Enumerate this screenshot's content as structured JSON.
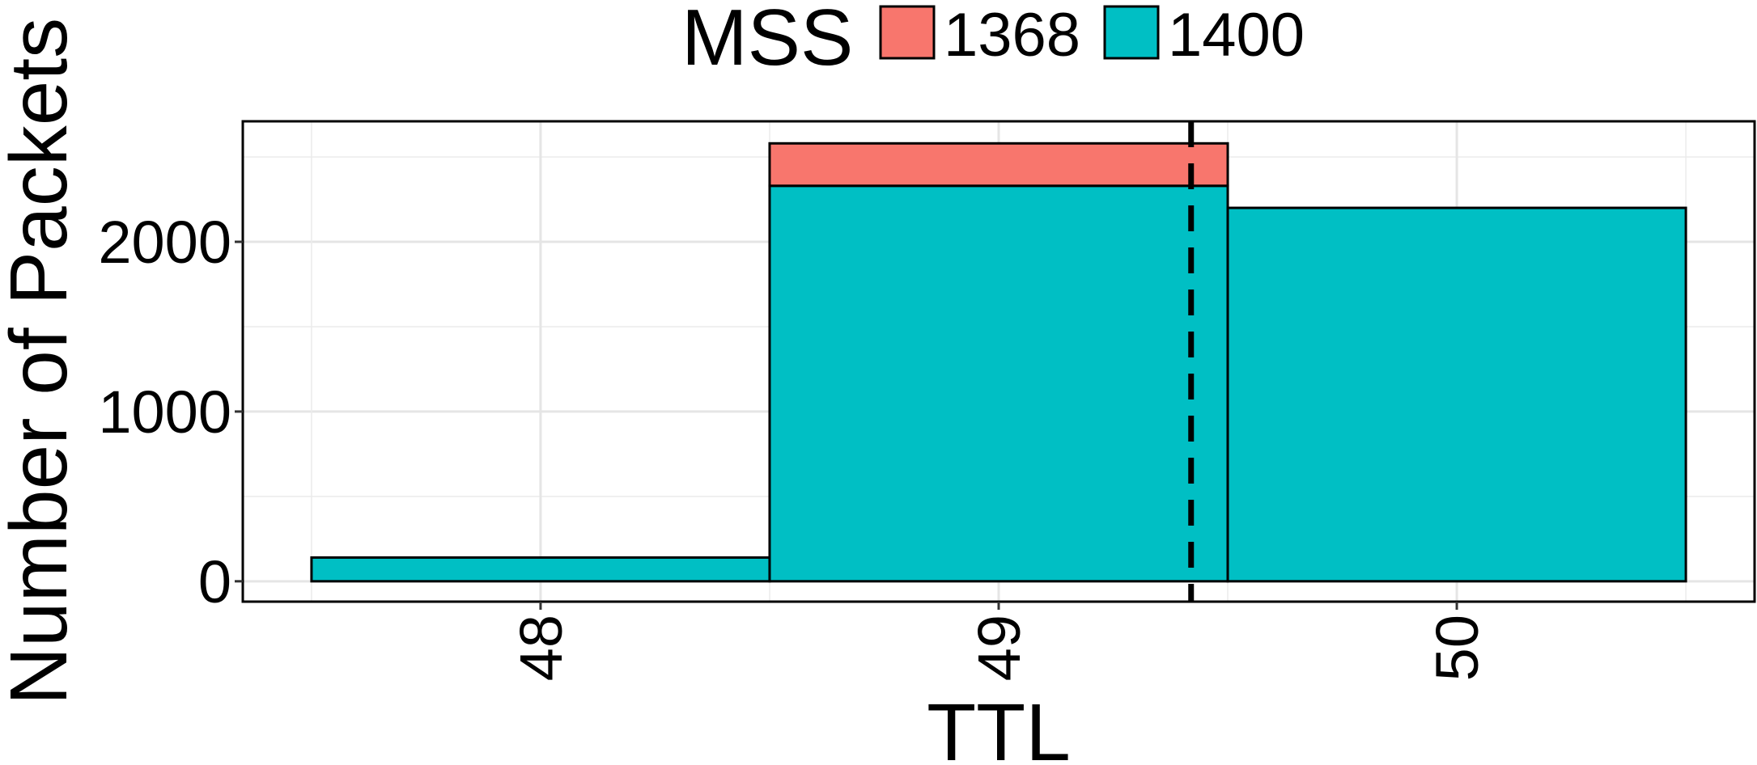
{
  "chart_data": {
    "type": "bar",
    "stacked": true,
    "xlabel": "TTL",
    "ylabel": "Number of Packets",
    "categories": [
      "48",
      "49",
      "50"
    ],
    "series": [
      {
        "name": "1400",
        "color": "#00BFC4",
        "values": [
          140,
          2330,
          2200
        ]
      },
      {
        "name": "1368",
        "color": "#F8766D",
        "values": [
          0,
          250,
          0
        ]
      }
    ],
    "yticks": [
      0,
      1000,
      2000
    ],
    "ylim": [
      -120,
      2710
    ],
    "xlim": [
      47.35,
      50.65
    ],
    "grid": true,
    "reference_line": {
      "x": 49.42,
      "style": "dashed"
    },
    "legend": {
      "title": "MSS",
      "position": "top",
      "entries": [
        "1368",
        "1400"
      ]
    }
  }
}
